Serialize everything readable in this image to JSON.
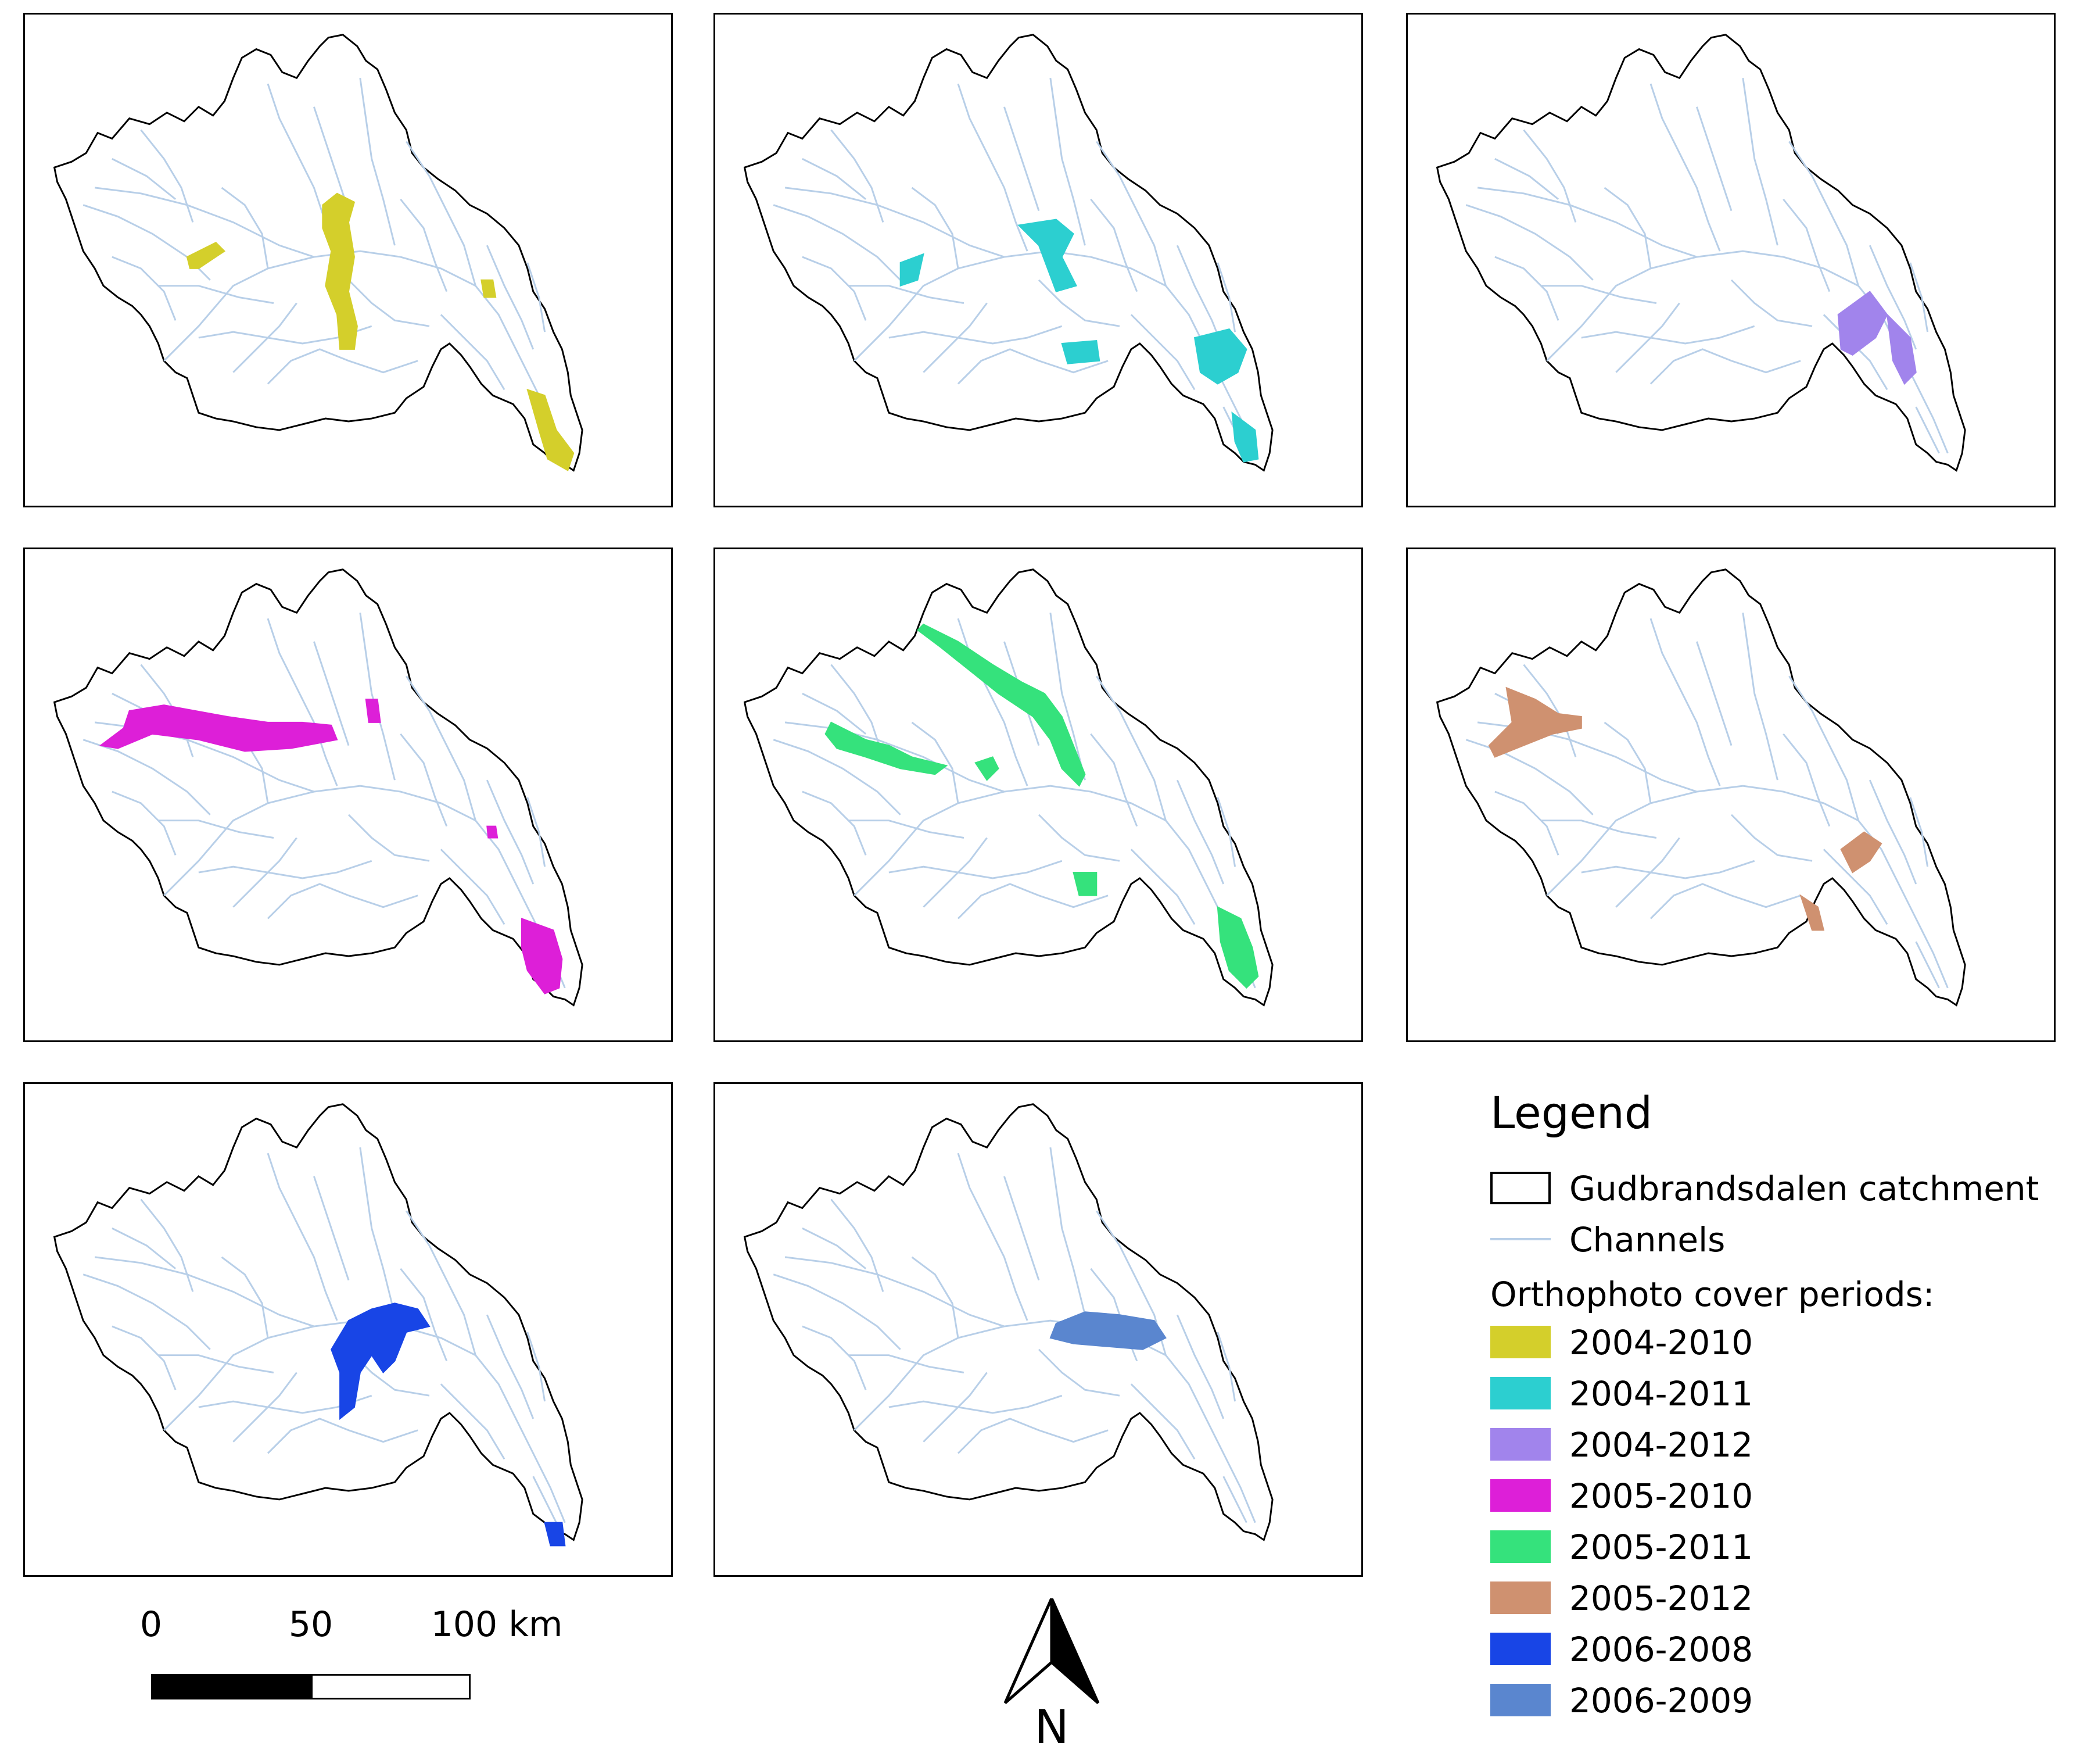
{
  "panels": [
    {
      "period": "2004-2010",
      "color": "#d4cf2b"
    },
    {
      "period": "2004-2011",
      "color": "#2ccfd0"
    },
    {
      "period": "2004-2012",
      "color": "#a184ec"
    },
    {
      "period": "2005-2010",
      "color": "#dd1fd8"
    },
    {
      "period": "2005-2011",
      "color": "#35e27c"
    },
    {
      "period": "2005-2012",
      "color": "#cf9170"
    },
    {
      "period": "2006-2008",
      "color": "#1845e6"
    },
    {
      "period": "2006-2009",
      "color": "#5a86cf"
    }
  ],
  "legend": {
    "title": "Legend",
    "catchment_label": "Gudbrandsdalen catchment",
    "channels_label": "Channels",
    "periods_heading": "Orthophoto cover periods:",
    "items": [
      {
        "label": "2004-2010",
        "color": "#d4cf2b"
      },
      {
        "label": "2004-2011",
        "color": "#2ccfd0"
      },
      {
        "label": "2004-2012",
        "color": "#a184ec"
      },
      {
        "label": "2005-2010",
        "color": "#dd1fd8"
      },
      {
        "label": "2005-2011",
        "color": "#35e27c"
      },
      {
        "label": "2005-2012",
        "color": "#cf9170"
      },
      {
        "label": "2006-2008",
        "color": "#1845e6"
      },
      {
        "label": "2006-2009",
        "color": "#5a86cf"
      }
    ]
  },
  "channels_color": "#b8cfe8",
  "scale": {
    "labels": [
      "0",
      "50",
      "100 km"
    ]
  },
  "north": {
    "label": "N"
  }
}
